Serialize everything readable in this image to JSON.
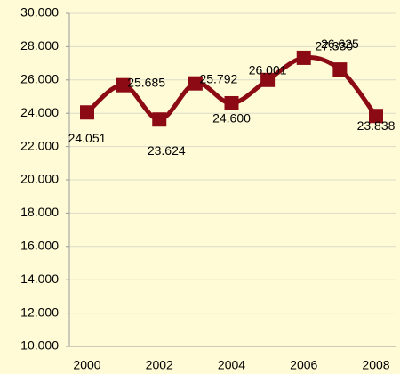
{
  "chart_data": {
    "type": "line",
    "categories": [
      "2000",
      null,
      "2002",
      null,
      "2004",
      null,
      "2006",
      null,
      "2008"
    ],
    "series": [
      {
        "color": "#8b0a14",
        "values": [
          24051,
          25685,
          23624,
          25792,
          24600,
          26001,
          27330,
          26625,
          23838
        ],
        "value_labels": [
          "24.051",
          "25.685",
          "23.624",
          "25.792",
          "24.600",
          "26.001",
          "27.330",
          "26.625",
          "23.838"
        ]
      }
    ],
    "ylim": [
      10000,
      30000
    ],
    "yticks": [
      {
        "value": 10000,
        "label": "10.000"
      },
      {
        "value": 12000,
        "label": "12.000"
      },
      {
        "value": 14000,
        "label": "14.000"
      },
      {
        "value": 16000,
        "label": "16.000"
      },
      {
        "value": 18000,
        "label": "18.000"
      },
      {
        "value": 20000,
        "label": "20.000"
      },
      {
        "value": 22000,
        "label": "22.000"
      },
      {
        "value": 24000,
        "label": "24.000"
      },
      {
        "value": 26000,
        "label": "26.000"
      },
      {
        "value": 28000,
        "label": "28.000"
      },
      {
        "value": 30000,
        "label": "30.000"
      }
    ],
    "grid": true,
    "smooth": true,
    "marker": "square"
  }
}
